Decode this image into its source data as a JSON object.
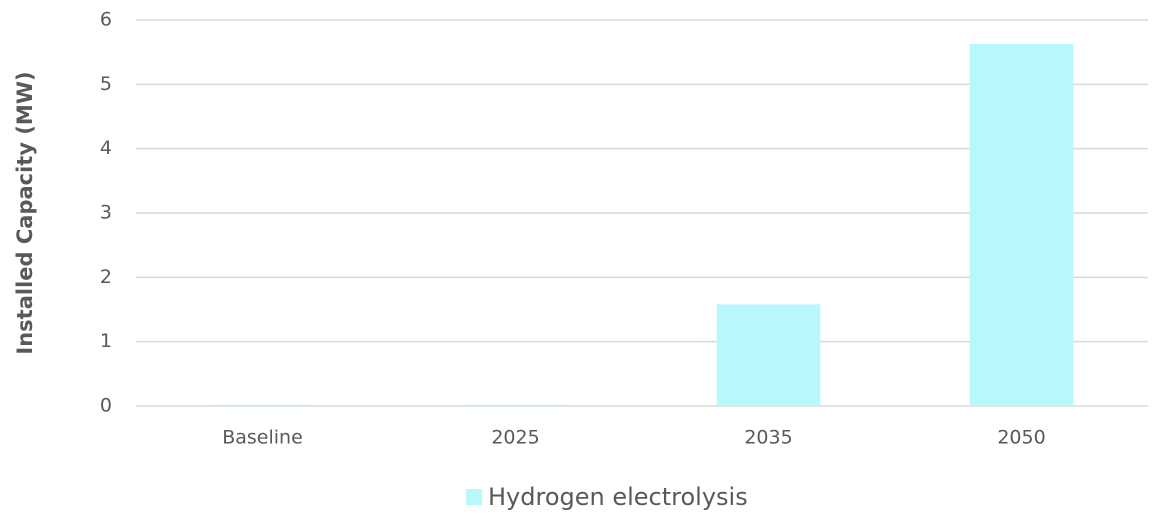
{
  "chart_data": {
    "type": "bar",
    "y_label": "Installed Capacity (MW)",
    "categories": [
      "Baseline",
      "2025",
      "2035",
      "2050"
    ],
    "series": [
      {
        "name": "Hydrogen electrolysis",
        "color": "#b8f8fc",
        "values": [
          0.02,
          0.02,
          1.58,
          5.63
        ]
      }
    ],
    "ylim": [
      0,
      6
    ],
    "yticks": [
      0,
      1,
      2,
      3,
      4,
      5,
      6
    ],
    "grid": true,
    "legend": "bottom"
  }
}
